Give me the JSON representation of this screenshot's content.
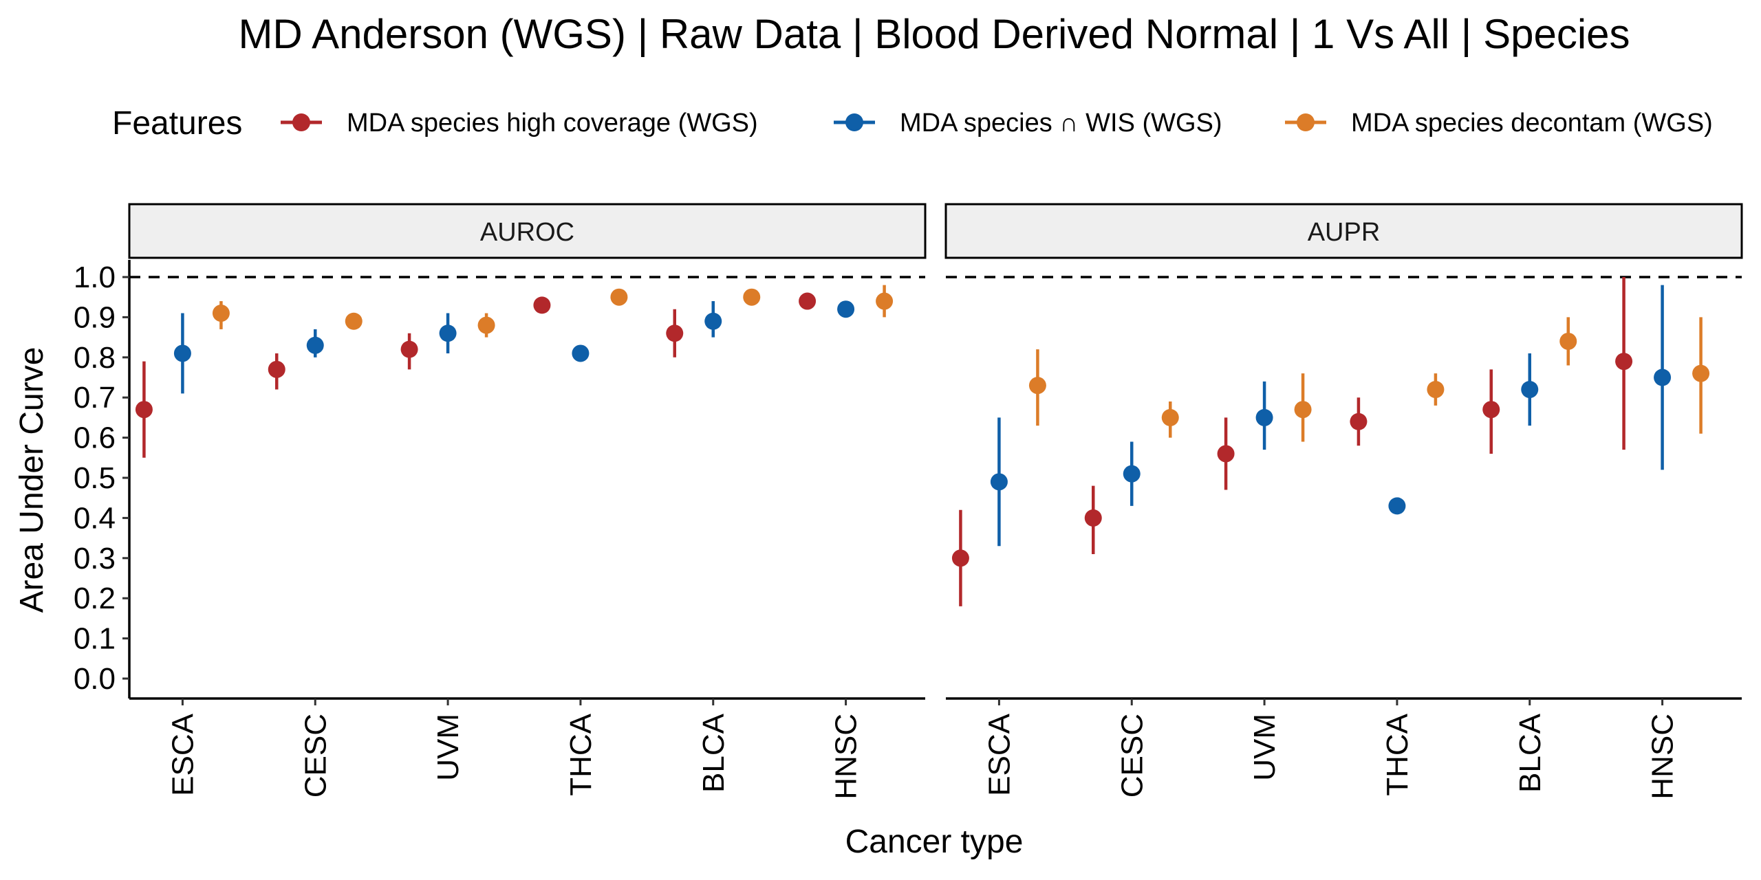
{
  "chart_data": {
    "type": "scatter",
    "title": "MD Anderson (WGS) | Raw Data | Blood Derived Normal | 1 Vs All | Species",
    "xlabel": "Cancer type",
    "ylabel": "Area Under Curve",
    "ylim": [
      0,
      1
    ],
    "yticks": [
      "0.0",
      "0.1",
      "0.2",
      "0.3",
      "0.4",
      "0.5",
      "0.6",
      "0.7",
      "0.8",
      "0.9",
      "1.0"
    ],
    "reference_line": 1.0,
    "legend": {
      "title": "Features",
      "placement": "top",
      "entries": [
        {
          "name": "MDA species high coverage (WGS)",
          "color": "#B2282B"
        },
        {
          "name": "MDA species ∩ WIS (WGS)",
          "color": "#0F5FA8"
        },
        {
          "name": "MDA species decontam (WGS)",
          "color": "#DC7C28"
        }
      ]
    },
    "categories": [
      "ESCA",
      "CESC",
      "UVM",
      "THCA",
      "BLCA",
      "HNSC"
    ],
    "panels": [
      {
        "label": "AUROC",
        "series": [
          {
            "name": "MDA species high coverage (WGS)",
            "values": [
              0.67,
              0.77,
              0.82,
              0.93,
              0.86,
              0.94
            ],
            "lower": [
              0.55,
              0.72,
              0.77,
              0.93,
              0.8,
              0.94
            ],
            "upper": [
              0.79,
              0.81,
              0.86,
              0.93,
              0.92,
              0.94
            ]
          },
          {
            "name": "MDA species ∩ WIS (WGS)",
            "values": [
              0.81,
              0.83,
              0.86,
              0.81,
              0.89,
              0.92
            ],
            "lower": [
              0.71,
              0.8,
              0.81,
              0.81,
              0.85,
              0.92
            ],
            "upper": [
              0.91,
              0.87,
              0.91,
              0.81,
              0.94,
              0.92
            ]
          },
          {
            "name": "MDA species decontam (WGS)",
            "values": [
              0.91,
              0.89,
              0.88,
              0.95,
              0.95,
              0.94
            ],
            "lower": [
              0.87,
              0.89,
              0.85,
              0.95,
              0.95,
              0.9
            ],
            "upper": [
              0.94,
              0.89,
              0.91,
              0.95,
              0.95,
              0.98
            ]
          }
        ]
      },
      {
        "label": "AUPR",
        "series": [
          {
            "name": "MDA species high coverage (WGS)",
            "values": [
              0.3,
              0.4,
              0.56,
              0.64,
              0.67,
              0.79
            ],
            "lower": [
              0.18,
              0.31,
              0.47,
              0.58,
              0.56,
              0.57
            ],
            "upper": [
              0.42,
              0.48,
              0.65,
              0.7,
              0.77,
              1.0
            ]
          },
          {
            "name": "MDA species ∩ WIS (WGS)",
            "values": [
              0.49,
              0.51,
              0.65,
              0.43,
              0.72,
              0.75
            ],
            "lower": [
              0.33,
              0.43,
              0.57,
              0.43,
              0.63,
              0.52
            ],
            "upper": [
              0.65,
              0.59,
              0.74,
              0.43,
              0.81,
              0.98
            ]
          },
          {
            "name": "MDA species decontam (WGS)",
            "values": [
              0.73,
              0.65,
              0.67,
              0.72,
              0.84,
              0.76
            ],
            "lower": [
              0.63,
              0.6,
              0.59,
              0.68,
              0.78,
              0.61
            ],
            "upper": [
              0.82,
              0.69,
              0.76,
              0.76,
              0.9,
              0.9
            ]
          }
        ]
      }
    ]
  }
}
